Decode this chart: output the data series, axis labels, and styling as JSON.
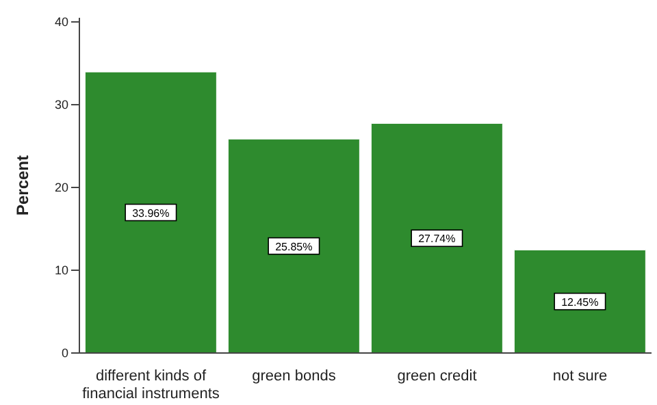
{
  "chart_data": {
    "type": "bar",
    "ylabel": "Percent",
    "categories": [
      "different kinds of financial instruments",
      "green bonds",
      "green credit",
      "not sure"
    ],
    "values": [
      33.96,
      25.85,
      27.74,
      12.45
    ],
    "value_labels": [
      "33.96%",
      "25.85%",
      "27.74%",
      "12.45%"
    ],
    "color": "#2e8b2e",
    "ylim": [
      0,
      40.5
    ],
    "yticks": [
      0,
      10,
      20,
      30,
      40
    ],
    "grid": false
  }
}
